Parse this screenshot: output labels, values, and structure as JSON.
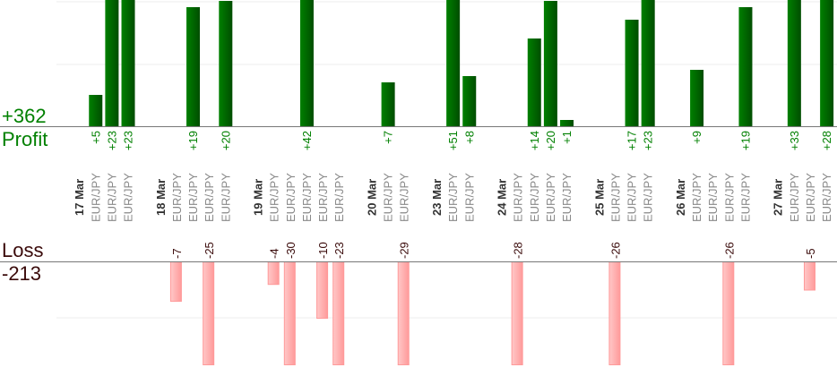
{
  "summary": {
    "profit_total": "+362",
    "profit_label": "Profit",
    "loss_label": "Loss",
    "loss_total": "-213"
  },
  "colors": {
    "profit": "#006600",
    "profit_text": "#008000",
    "loss_fill": "#ffaaaa",
    "loss_text": "#3a0a0a",
    "date_text": "#333333",
    "pair_text": "#888888"
  },
  "chart_data": {
    "type": "bar",
    "title": "",
    "profit_axis": {
      "ylim": [
        0,
        20
      ],
      "grid_step": 10
    },
    "loss_axis": {
      "ylim": [
        0,
        -18
      ],
      "grid_step": 10
    },
    "groups": [
      {
        "date": "17 Mar",
        "trades": [
          {
            "pair": "EUR/JPY",
            "pl": 5
          },
          {
            "pair": "EUR/JPY",
            "pl": 23
          },
          {
            "pair": "EUR/JPY",
            "pl": 23
          }
        ]
      },
      {
        "date": "18 Mar",
        "trades": [
          {
            "pair": "EUR/JPY",
            "pl": -7
          },
          {
            "pair": "EUR/JPY",
            "pl": 19
          },
          {
            "pair": "EUR/JPY",
            "pl": -25
          },
          {
            "pair": "EUR/JPY",
            "pl": 20
          }
        ]
      },
      {
        "date": "19 Mar",
        "trades": [
          {
            "pair": "EUR/JPY",
            "pl": -4
          },
          {
            "pair": "EUR/JPY",
            "pl": -30
          },
          {
            "pair": "EUR/JPY",
            "pl": 42
          },
          {
            "pair": "EUR/JPY",
            "pl": -10
          },
          {
            "pair": "EUR/JPY",
            "pl": -23
          }
        ]
      },
      {
        "date": "20 Mar",
        "trades": [
          {
            "pair": "EUR/JPY",
            "pl": 7
          },
          {
            "pair": "EUR/JPY",
            "pl": -29
          }
        ]
      },
      {
        "date": "23 Mar",
        "trades": [
          {
            "pair": "EUR/JPY",
            "pl": 51
          },
          {
            "pair": "EUR/JPY",
            "pl": 8
          }
        ]
      },
      {
        "date": "24 Mar",
        "trades": [
          {
            "pair": "EUR/JPY",
            "pl": -28
          },
          {
            "pair": "EUR/JPY",
            "pl": 14
          },
          {
            "pair": "EUR/JPY",
            "pl": 20
          },
          {
            "pair": "EUR/JPY",
            "pl": 1
          }
        ]
      },
      {
        "date": "25 Mar",
        "trades": [
          {
            "pair": "EUR/JPY",
            "pl": -26
          },
          {
            "pair": "EUR/JPY",
            "pl": 17
          },
          {
            "pair": "EUR/JPY",
            "pl": 23
          }
        ]
      },
      {
        "date": "26 Mar",
        "trades": [
          {
            "pair": "EUR/JPY",
            "pl": 9
          },
          {
            "pair": "EUR/JPY",
            "pl": 0
          },
          {
            "pair": "EUR/JPY",
            "pl": -26
          },
          {
            "pair": "EUR/JPY",
            "pl": 19
          }
        ]
      },
      {
        "date": "27 Mar",
        "trades": [
          {
            "pair": "EUR/JPY",
            "pl": 33
          },
          {
            "pair": "EUR/JPY",
            "pl": -5
          },
          {
            "pair": "EUR/JPY",
            "pl": 28
          }
        ]
      }
    ]
  }
}
